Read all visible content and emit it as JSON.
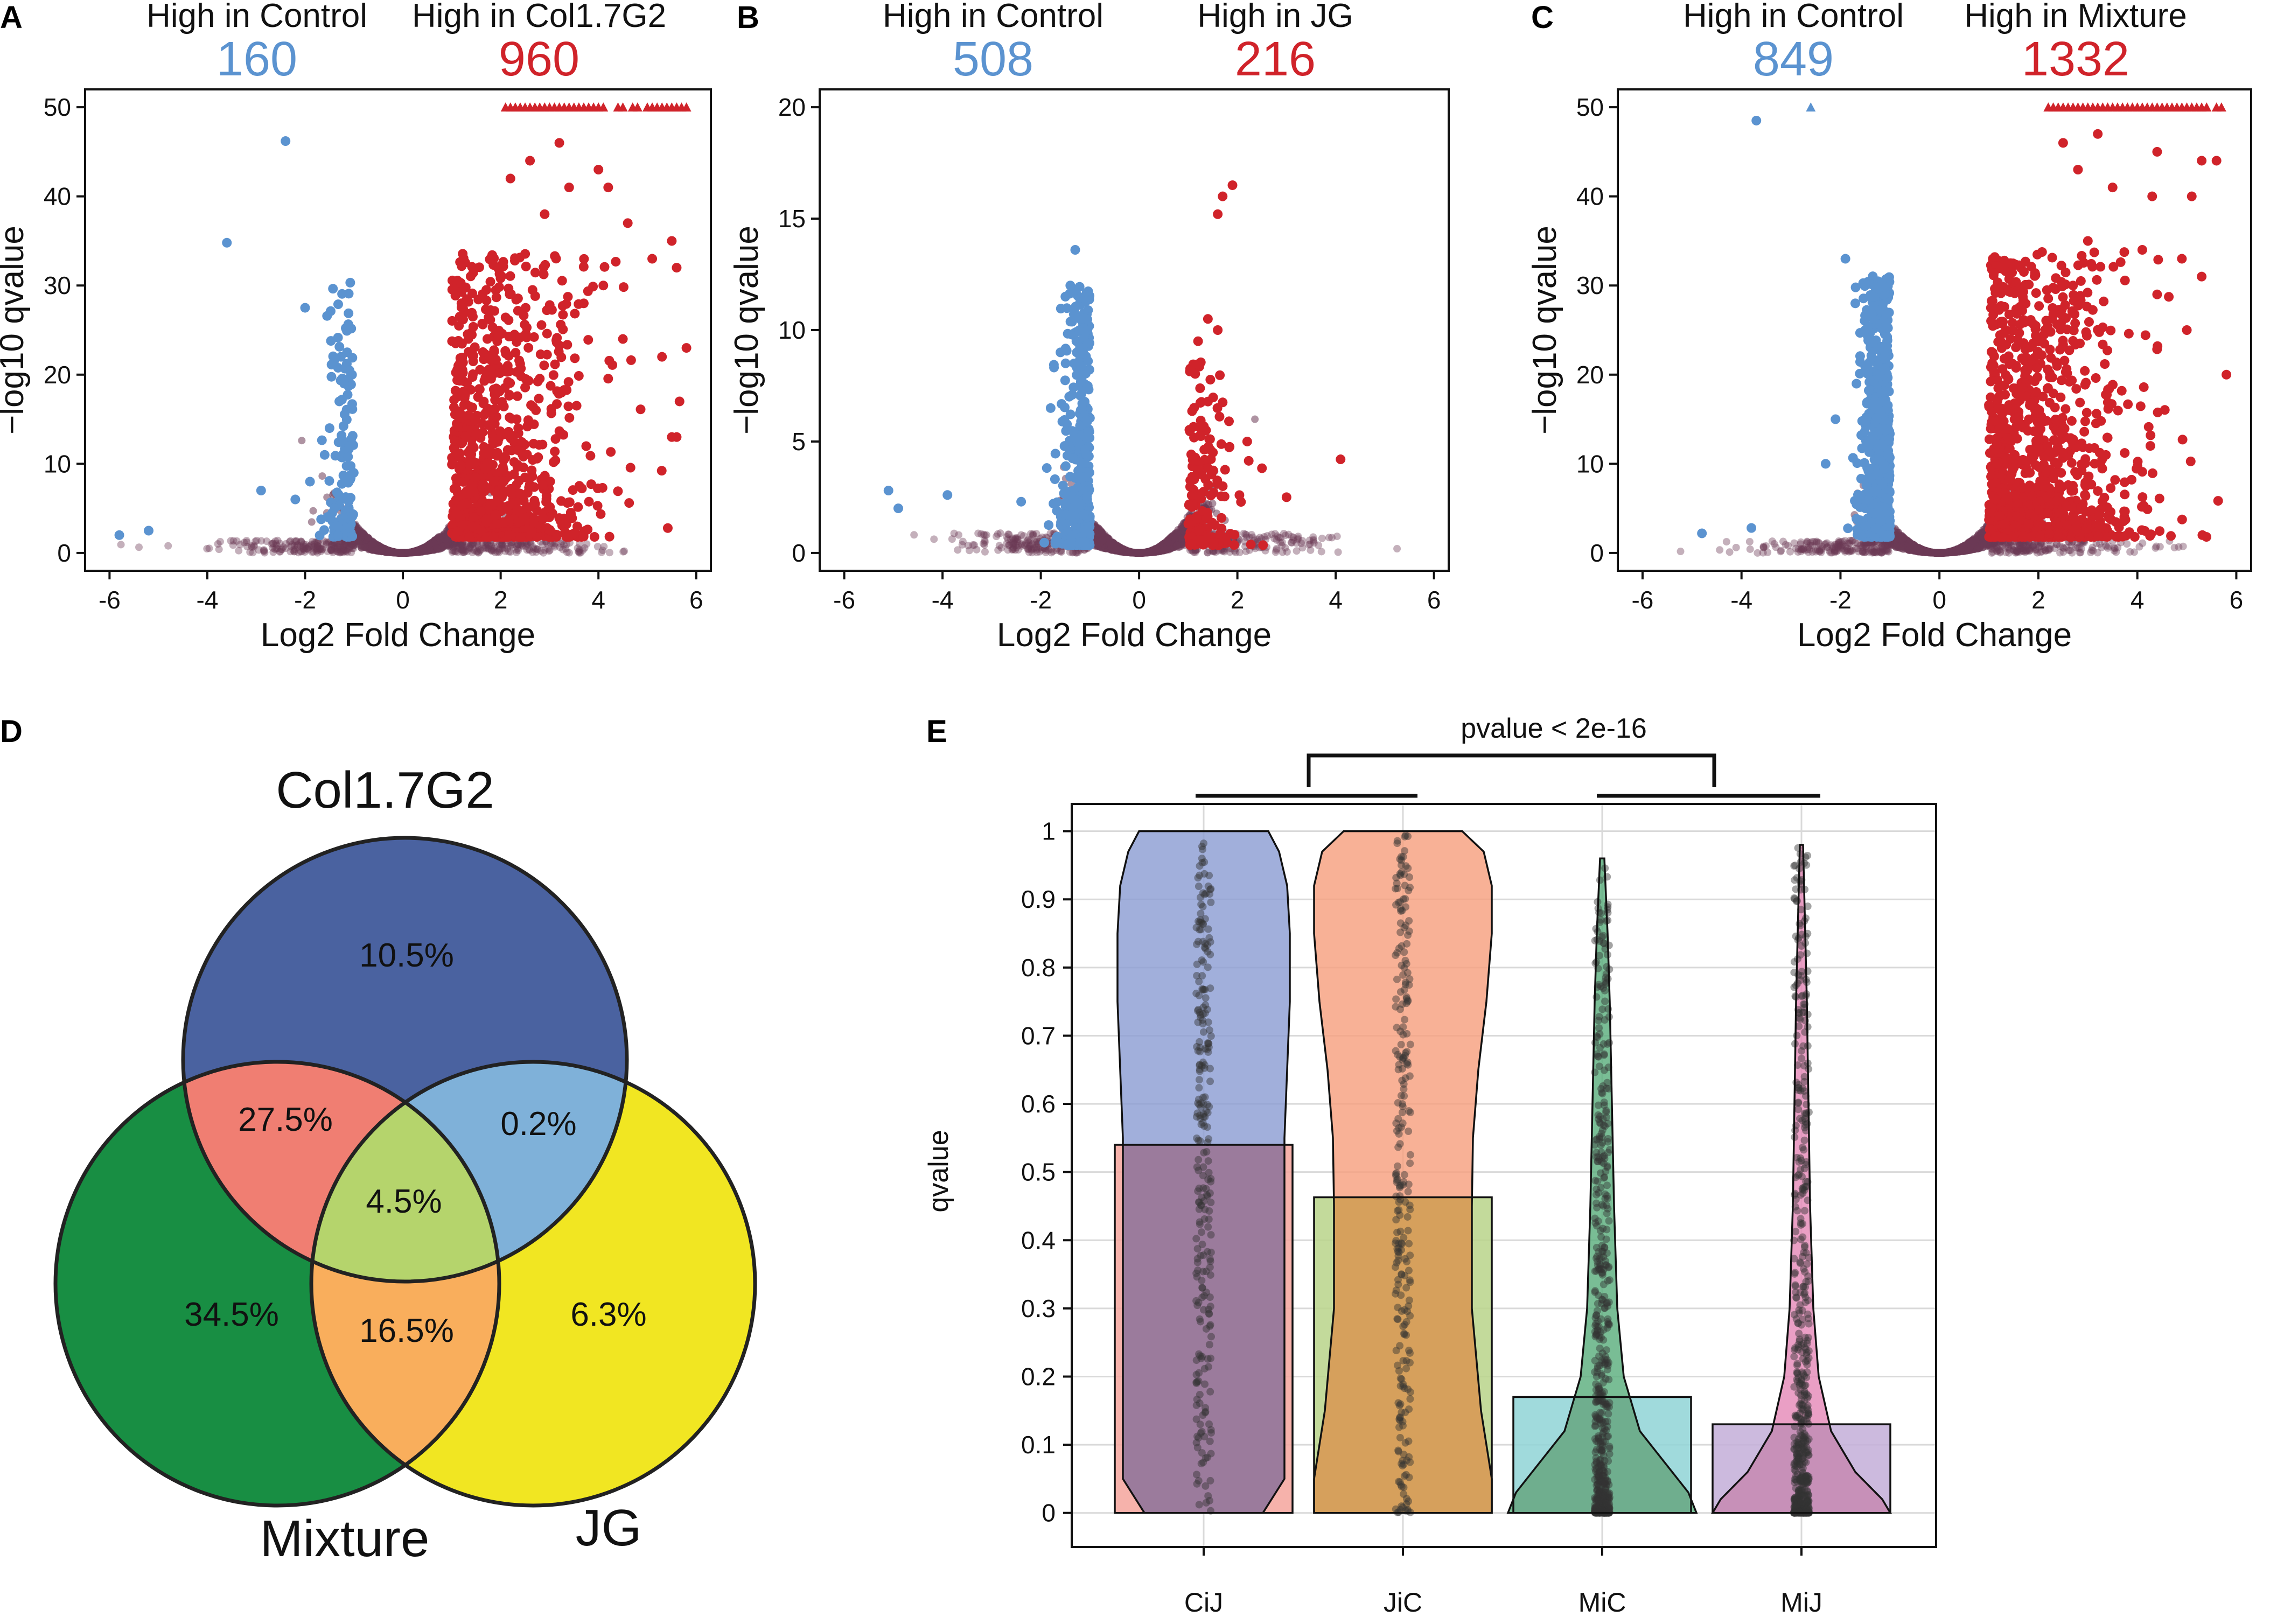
{
  "colors": {
    "down": "#5B93D0",
    "up": "#D0232A",
    "ns": "#6B3A55",
    "venn_col": "#4A62A0",
    "venn_mix": "#188E43",
    "venn_jg": "#F1E622",
    "venn_col_mix": "#F07E72",
    "venn_col_jg": "#7FB1D9",
    "venn_mix_jg": "#F9AE5C",
    "venn_all": "#B5D46C"
  },
  "chart_data": [
    {
      "type": "scatter",
      "panel": "A",
      "title_left": "High in Control",
      "title_right": "High in Col1.7G2",
      "count_left": "160",
      "count_right": "960",
      "xlabel": "Log2 Fold Change",
      "ylabel": "−log10 qvalue",
      "xlim": [
        -6.5,
        6.3
      ],
      "ylim": [
        -2,
        52
      ],
      "xticks": [
        "-6",
        "-4",
        "-2",
        "0",
        "2",
        "4",
        "6"
      ],
      "yticks": [
        "0",
        "10",
        "20",
        "30",
        "40",
        "50"
      ],
      "cap_value": 50,
      "down": [
        [
          -5.8,
          2
        ],
        [
          -5.2,
          2.5
        ],
        [
          -3.6,
          34.8
        ],
        [
          -2.4,
          46.2
        ],
        [
          -2.0,
          27.5
        ],
        [
          -1.2,
          19
        ],
        [
          -1.3,
          17
        ],
        [
          -1.5,
          14
        ],
        [
          -2.9,
          7
        ],
        [
          -1.1,
          12
        ],
        [
          -2.2,
          6
        ],
        [
          -1.6,
          11
        ],
        [
          -1.9,
          8
        ],
        [
          -1.4,
          5
        ]
      ],
      "up": [
        [
          2.6,
          44
        ],
        [
          3.2,
          46
        ],
        [
          3.4,
          41
        ],
        [
          2.9,
          38
        ],
        [
          4.0,
          43
        ],
        [
          4.6,
          37
        ],
        [
          5.1,
          33
        ],
        [
          5.5,
          35
        ],
        [
          5.6,
          32
        ],
        [
          5.8,
          23
        ],
        [
          5.3,
          22
        ],
        [
          5.6,
          13
        ],
        [
          4.1,
          30
        ],
        [
          3.7,
          28
        ],
        [
          4.5,
          24
        ],
        [
          2.2,
          42
        ],
        [
          4.2,
          41
        ],
        [
          5.5,
          13
        ]
      ],
      "up_capped_x": [
        2.1,
        2.2,
        2.3,
        2.4,
        2.5,
        2.6,
        2.7,
        2.8,
        2.9,
        3.0,
        3.1,
        3.2,
        3.3,
        3.4,
        3.5,
        3.6,
        3.7,
        3.8,
        3.9,
        4.0,
        4.1,
        4.4,
        4.5,
        4.7,
        4.8,
        5.0,
        5.1,
        5.2,
        5.3,
        5.4,
        5.5,
        5.6,
        5.7,
        5.8
      ],
      "down_capped_x": []
    },
    {
      "type": "scatter",
      "panel": "B",
      "title_left": "High in Control",
      "title_right": "High in JG",
      "count_left": "508",
      "count_right": "216",
      "xlabel": "Log2 Fold Change",
      "ylabel": "−log10 qvalue",
      "xlim": [
        -6.5,
        6.3
      ],
      "ylim": [
        -0.8,
        20.8
      ],
      "xticks": [
        "-6",
        "-4",
        "-2",
        "0",
        "2",
        "4",
        "6"
      ],
      "yticks": [
        "0",
        "5",
        "10",
        "15",
        "20"
      ],
      "cap_value": null,
      "down": [
        [
          -5.1,
          2.8
        ],
        [
          -4.9,
          2.0
        ],
        [
          -3.9,
          2.6
        ],
        [
          -1.3,
          13.6
        ],
        [
          -1.4,
          12.0
        ],
        [
          -1.5,
          11.5
        ],
        [
          -2.4,
          2.3
        ],
        [
          -1.8,
          6.5
        ],
        [
          -1.2,
          10.5
        ],
        [
          -1.6,
          9.0
        ]
      ],
      "up": [
        [
          1.9,
          16.5
        ],
        [
          1.7,
          16.0
        ],
        [
          1.6,
          15.2
        ],
        [
          1.4,
          10.5
        ],
        [
          1.6,
          10.0
        ],
        [
          2.5,
          3.8
        ],
        [
          4.1,
          4.2
        ],
        [
          3.0,
          2.5
        ],
        [
          2.2,
          5.0
        ],
        [
          1.2,
          9.5
        ]
      ],
      "up_capped_x": [],
      "down_capped_x": []
    },
    {
      "type": "scatter",
      "panel": "C",
      "title_left": "High in Control",
      "title_right": "High in Mixture",
      "count_left": "849",
      "count_right": "1332",
      "xlabel": "Log2 Fold Change",
      "ylabel": "−log10 qvalue",
      "xlim": [
        -6.5,
        6.3
      ],
      "ylim": [
        -2,
        52
      ],
      "xticks": [
        "-6",
        "-4",
        "-2",
        "0",
        "2",
        "4",
        "6"
      ],
      "yticks": [
        "0",
        "10",
        "20",
        "30",
        "40",
        "50"
      ],
      "cap_value": 50,
      "down": [
        [
          -4.8,
          2.2
        ],
        [
          -3.7,
          48.5
        ],
        [
          -1.9,
          33.0
        ],
        [
          -3.8,
          2.8
        ],
        [
          -2.3,
          10
        ],
        [
          -1.7,
          28
        ],
        [
          -1.5,
          25
        ],
        [
          -2.1,
          15
        ]
      ],
      "up": [
        [
          2.5,
          46
        ],
        [
          3.2,
          47
        ],
        [
          2.8,
          43
        ],
        [
          4.4,
          45
        ],
        [
          5.3,
          44
        ],
        [
          5.6,
          44
        ],
        [
          3.5,
          41
        ],
        [
          4.3,
          40
        ],
        [
          5.1,
          40
        ],
        [
          4.9,
          33
        ],
        [
          5.3,
          31
        ],
        [
          3.0,
          35
        ],
        [
          2.7,
          30
        ],
        [
          4.4,
          29
        ],
        [
          5.0,
          25
        ],
        [
          5.8,
          20
        ],
        [
          4.1,
          34
        ]
      ],
      "up_capped_x": [
        2.2,
        2.3,
        2.4,
        2.5,
        2.6,
        2.7,
        2.8,
        2.9,
        3.0,
        3.1,
        3.2,
        3.3,
        3.4,
        3.5,
        3.6,
        3.7,
        3.8,
        3.9,
        4.0,
        4.1,
        4.2,
        4.3,
        4.4,
        4.5,
        4.6,
        4.7,
        4.8,
        4.9,
        5.0,
        5.1,
        5.2,
        5.3,
        5.4,
        5.6,
        5.7
      ],
      "down_capped_x": [
        -2.6
      ]
    },
    {
      "type": "venn",
      "panel": "D",
      "sets": [
        "Col1.7G2",
        "Mixture",
        "JG"
      ],
      "regions": {
        "col_only": "10.5%",
        "col_mix": "27.5%",
        "col_jg": "0.2%",
        "all": "4.5%",
        "mix_only": "34.5%",
        "mix_jg": "16.5%",
        "jg_only": "6.3%"
      }
    },
    {
      "type": "violin+bar",
      "panel": "E",
      "categories": [
        "CiJ",
        "JiC",
        "MiC",
        "MiJ"
      ],
      "bar_values": [
        0.54,
        0.463,
        0.17,
        0.13
      ],
      "violin_max": [
        1.0,
        1.0,
        0.965,
        0.98
      ],
      "ylabel": "qvalue",
      "ylim": [
        -0.05,
        1.04
      ],
      "yticks": [
        "0",
        "0.1",
        "0.2",
        "0.3",
        "0.4",
        "0.5",
        "0.6",
        "0.7",
        "0.8",
        "0.9",
        "1"
      ],
      "annotation": "pvalue < 2e-16",
      "violin_colors": [
        "#8C9DD3",
        "#F6A07F",
        "#5CAE7E",
        "#E58AB8"
      ],
      "bar_colors": [
        "#F5A59C",
        "#B8D48A",
        "#8FD4D6",
        "#C3AED8"
      ],
      "overlap_colors": [
        "#9B7B9C",
        "#D6A05C",
        "#6FAE8E",
        "#C790B8"
      ]
    }
  ],
  "panel_labels": [
    "A",
    "B",
    "C",
    "D",
    "E"
  ]
}
